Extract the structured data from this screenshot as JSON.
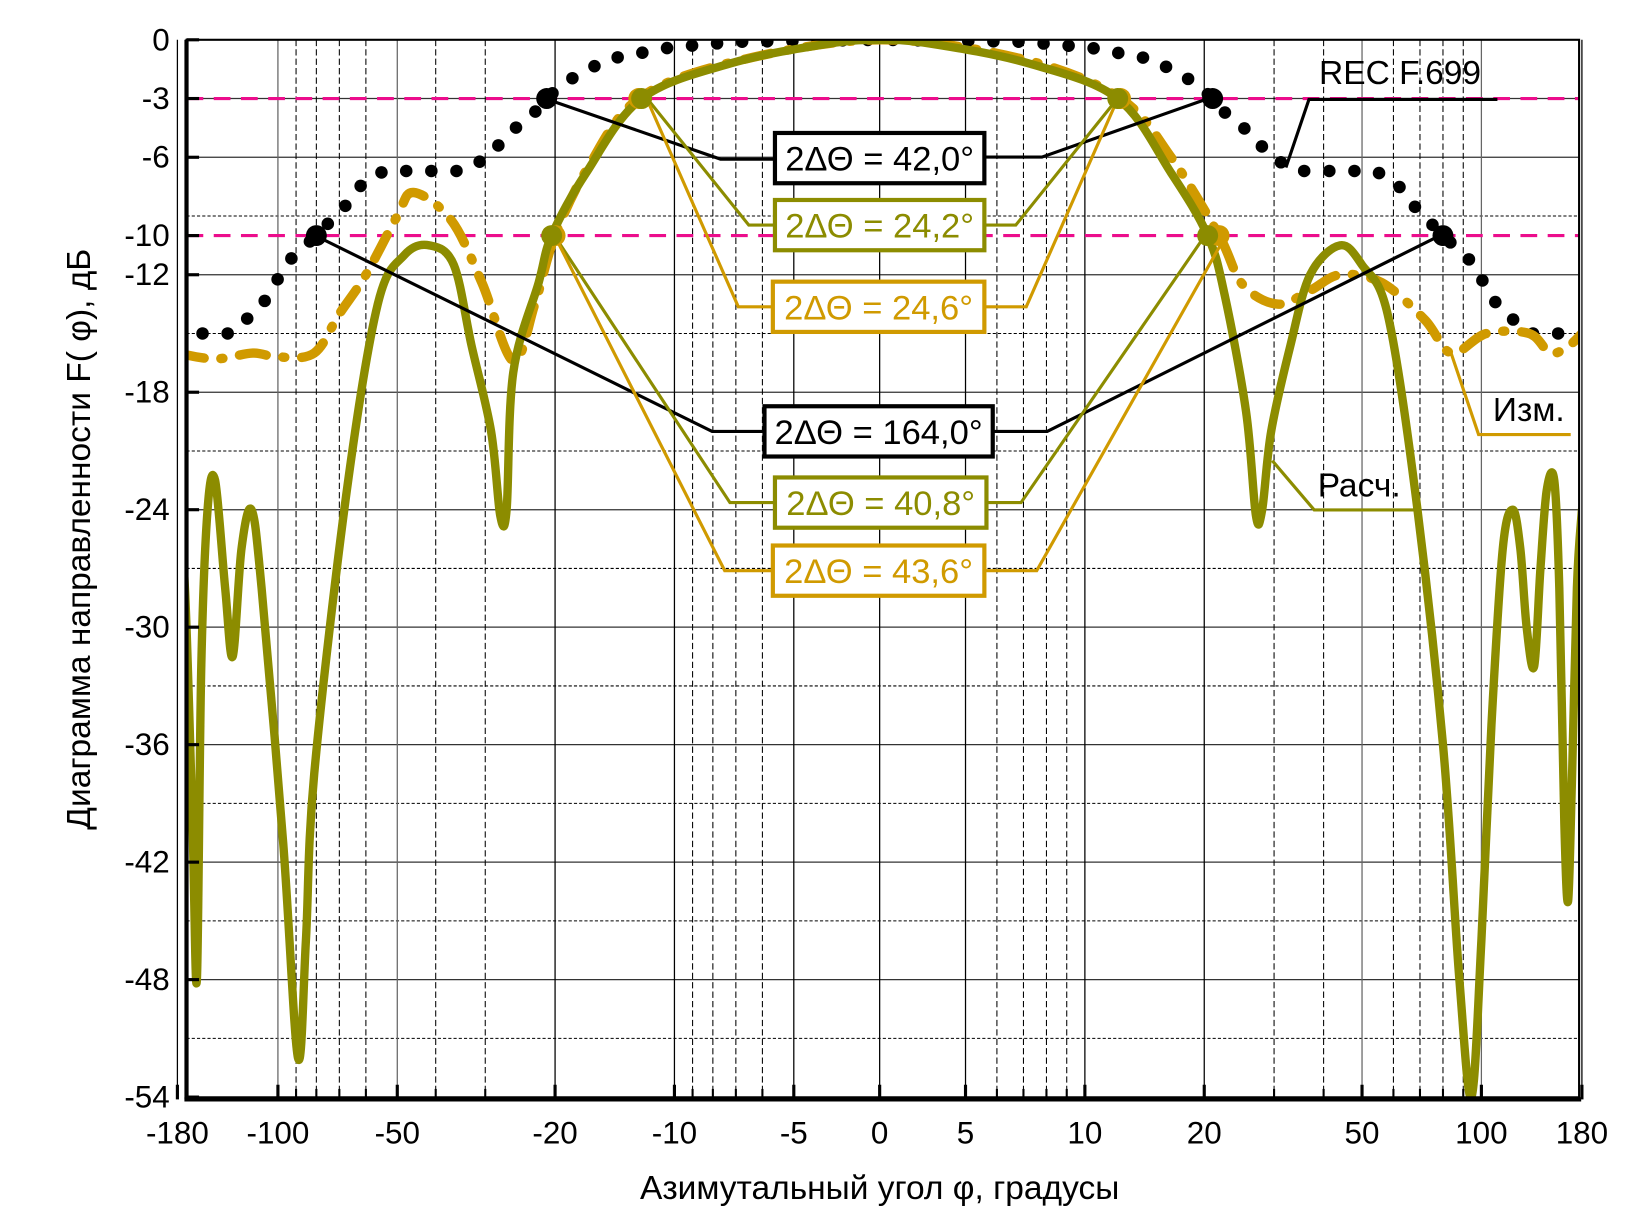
{
  "chart_data": {
    "type": "line",
    "xlabel": "Азимутальный угол  φ, градусы",
    "ylabel": "Диаграмма направленности F( φ), дБ",
    "xlim": [
      -180,
      180
    ],
    "ylim": [
      -54,
      0
    ],
    "x_scale": "symmetric-log",
    "grid": true,
    "x_ticks": [
      -180,
      -100,
      -50,
      -20,
      -10,
      -5,
      0,
      5,
      10,
      20,
      50,
      100,
      180
    ],
    "x_minor": [
      -90,
      -80,
      -70,
      -60,
      -40,
      -30,
      -9,
      -8,
      -7,
      -6,
      6,
      7,
      8,
      9,
      30,
      40,
      60,
      70,
      80,
      90
    ],
    "y_ticks": [
      0,
      -3,
      -6,
      -10,
      -12,
      -18,
      -24,
      -30,
      -36,
      -42,
      -48,
      -54
    ],
    "y_major_grid": [
      0,
      -3,
      -6,
      -12,
      -18,
      -24,
      -30,
      -36,
      -42,
      -48,
      -54
    ],
    "y_minor_grid": [
      -9,
      -15,
      -21,
      -27,
      -33,
      -39,
      -45,
      -51
    ],
    "reference_lines": [
      -3,
      -10
    ],
    "colors": {
      "rec": "#000000",
      "meas": "#d09a00",
      "calc": "#8c8c00",
      "ref": "#ec0d8c"
    },
    "series": [
      {
        "name": "REC F.699",
        "style": "dots",
        "color": "#000000",
        "points": [
          [
            -180,
            -15
          ],
          [
            -156,
            -15
          ],
          [
            -138,
            -15
          ],
          [
            -113,
            -13.6
          ],
          [
            -94,
            -11.3
          ],
          [
            -80,
            -10
          ],
          [
            -67,
            -8.4
          ],
          [
            -61,
            -7.3
          ],
          [
            -54,
            -6.7
          ],
          [
            -35,
            -6.7
          ],
          [
            -30,
            -6.1
          ],
          [
            -25.5,
            -4.6
          ],
          [
            -22.5,
            -3.7
          ],
          [
            -21,
            -3
          ],
          [
            -19,
            -2.2
          ],
          [
            -14.8,
            -1
          ],
          [
            -10.3,
            -0.4
          ],
          [
            -7,
            -0.1
          ],
          [
            0,
            0
          ],
          [
            7,
            -0.1
          ],
          [
            10.3,
            -0.4
          ],
          [
            14.8,
            -1
          ],
          [
            19,
            -2.2
          ],
          [
            21,
            -3
          ],
          [
            22.5,
            -3.7
          ],
          [
            25.5,
            -4.6
          ],
          [
            30,
            -6.1
          ],
          [
            35,
            -6.7
          ],
          [
            54,
            -6.7
          ],
          [
            61,
            -7.3
          ],
          [
            67,
            -8.4
          ],
          [
            80,
            -10
          ],
          [
            94,
            -11.3
          ],
          [
            113,
            -13.6
          ],
          [
            138,
            -15
          ],
          [
            156,
            -15
          ],
          [
            180,
            -15
          ]
        ]
      },
      {
        "name": "Изм.",
        "style": "dashdot",
        "color": "#d09a00",
        "points": [
          [
            -180,
            -16
          ],
          [
            -150,
            -16.3
          ],
          [
            -120,
            -16
          ],
          [
            -100,
            -16.2
          ],
          [
            -81,
            -16
          ],
          [
            -70,
            -14
          ],
          [
            -60,
            -12
          ],
          [
            -50,
            -9
          ],
          [
            -45.5,
            -7.8
          ],
          [
            -36.6,
            -9.2
          ],
          [
            -30.6,
            -12.4
          ],
          [
            -25.5,
            -16.4
          ],
          [
            -22.5,
            -13.5
          ],
          [
            -20,
            -10
          ],
          [
            -16.5,
            -6.5
          ],
          [
            -12.3,
            -3
          ],
          [
            -7,
            -1.1
          ],
          [
            0,
            0
          ],
          [
            7,
            -1
          ],
          [
            12.3,
            -3
          ],
          [
            16.5,
            -6
          ],
          [
            21.8,
            -10
          ],
          [
            25,
            -12.5
          ],
          [
            30.6,
            -13.5
          ],
          [
            37,
            -12.8
          ],
          [
            44,
            -12
          ],
          [
            56,
            -12.4
          ],
          [
            72,
            -14.3
          ],
          [
            84,
            -16
          ],
          [
            104,
            -15
          ],
          [
            138,
            -15
          ],
          [
            155,
            -16
          ],
          [
            170,
            -15.6
          ],
          [
            180,
            -15
          ]
        ]
      },
      {
        "name": "Расч.",
        "style": "solid",
        "color": "#8c8c00",
        "points": [
          [
            -180,
            -24
          ],
          [
            -174,
            -28
          ],
          [
            -168,
            -40
          ],
          [
            -164.5,
            -48
          ],
          [
            -161,
            -32
          ],
          [
            -156,
            -24
          ],
          [
            -150,
            -22.5
          ],
          [
            -142,
            -28
          ],
          [
            -136,
            -31.5
          ],
          [
            -129,
            -26
          ],
          [
            -121,
            -24
          ],
          [
            -113,
            -28
          ],
          [
            -97,
            -41
          ],
          [
            -89,
            -52
          ],
          [
            -85,
            -46
          ],
          [
            -81,
            -37.5
          ],
          [
            -67,
            -23
          ],
          [
            -56,
            -13.5
          ],
          [
            -48,
            -11
          ],
          [
            -41.5,
            -10.5
          ],
          [
            -36,
            -11.5
          ],
          [
            -32.5,
            -15.6
          ],
          [
            -29,
            -20
          ],
          [
            -27.5,
            -24.3
          ],
          [
            -26.5,
            -24
          ],
          [
            -25.5,
            -17
          ],
          [
            -22,
            -12.4
          ],
          [
            -20.4,
            -10
          ],
          [
            -16.7,
            -6.8
          ],
          [
            -12.1,
            -3
          ],
          [
            -7.2,
            -1.2
          ],
          [
            -3,
            -0.2
          ],
          [
            0,
            0
          ],
          [
            3,
            -0.2
          ],
          [
            7.2,
            -1.2
          ],
          [
            12.1,
            -3
          ],
          [
            16.5,
            -6.8
          ],
          [
            20.4,
            -10
          ],
          [
            22.5,
            -13
          ],
          [
            25.5,
            -19
          ],
          [
            27,
            -24.3
          ],
          [
            28,
            -24
          ],
          [
            29.5,
            -20
          ],
          [
            33,
            -15.6
          ],
          [
            37,
            -12
          ],
          [
            44,
            -10.5
          ],
          [
            50,
            -11.5
          ],
          [
            58,
            -14
          ],
          [
            68,
            -23
          ],
          [
            80,
            -36
          ],
          [
            88,
            -48
          ],
          [
            94.4,
            -54
          ],
          [
            100,
            -46
          ],
          [
            108,
            -35
          ],
          [
            117,
            -26
          ],
          [
            125,
            -24
          ],
          [
            131,
            -26
          ],
          [
            136,
            -30
          ],
          [
            142,
            -32
          ],
          [
            147,
            -27
          ],
          [
            152,
            -23
          ],
          [
            158,
            -22.5
          ],
          [
            162,
            -28
          ],
          [
            166,
            -40
          ],
          [
            169,
            -44
          ],
          [
            172,
            -38
          ],
          [
            176,
            -28
          ],
          [
            180,
            -24
          ]
        ]
      }
    ],
    "markers": [
      {
        "series": "REC F.699",
        "color": "#000000",
        "points": [
          [
            -21,
            -3
          ],
          [
            21,
            -3
          ],
          [
            -80,
            -10
          ],
          [
            80,
            -10
          ]
        ]
      },
      {
        "series": "Изм.",
        "color": "#d09a00",
        "points": [
          [
            -12.3,
            -3
          ],
          [
            12.3,
            -3
          ],
          [
            -20,
            -10
          ],
          [
            21.8,
            -10
          ]
        ]
      },
      {
        "series": "Расч.",
        "color": "#8c8c00",
        "points": [
          [
            -12.1,
            -3
          ],
          [
            12.1,
            -3
          ],
          [
            -20.4,
            -10
          ],
          [
            20.4,
            -10
          ]
        ]
      }
    ],
    "legend_labels": {
      "rec": "REC F.699",
      "meas": "Изм.",
      "calc": "Расч."
    },
    "annotations": [
      {
        "text": "2ΔΘ = 42,0°",
        "series": "REC F.699",
        "level_db": -3
      },
      {
        "text": "2ΔΘ = 24,2°",
        "series": "Расч.",
        "level_db": -3
      },
      {
        "text": "2ΔΘ = 24,6°",
        "series": "Изм.",
        "level_db": -3
      },
      {
        "text": "2ΔΘ = 164,0°",
        "series": "REC F.699",
        "level_db": -10
      },
      {
        "text": "2ΔΘ = 40,8°",
        "series": "Расч.",
        "level_db": -10
      },
      {
        "text": "2ΔΘ = 43,6°",
        "series": "Изм.",
        "level_db": -10
      }
    ]
  }
}
